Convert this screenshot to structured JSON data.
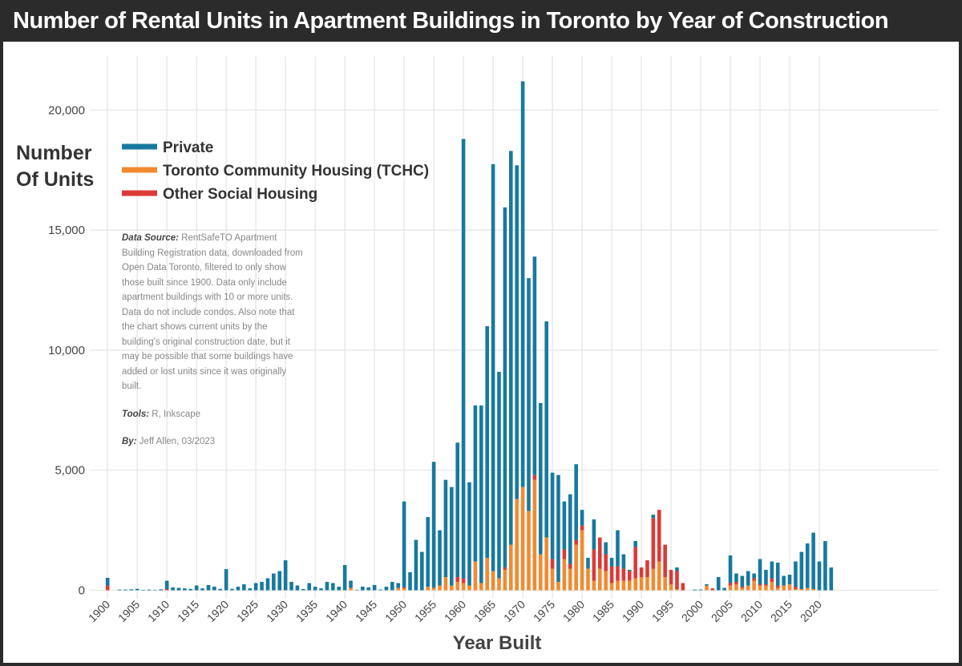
{
  "chart_data": {
    "type": "stacked_bar",
    "title": "Number of Rental Units in Apartment Buildings in Toronto by Year of Construction",
    "y_label": "Number Of Units",
    "x_label": "Year Built",
    "notes": {
      "source_label": "Data Source:",
      "source": "RentSafeTO Apartment Building Registration data, downloaded from Open Data Toronto, filtered to only show those built since 1900. Data only include apartment buildings with 10 or more units. Data do not include condos. Also note that the chart shows current units by the building's original construction date, but it may be possible that some buildings have added or lost units since it was originally built.",
      "tools_label": "Tools:",
      "tools": "R, Inkscape",
      "by_label": "By:",
      "by": "Jeff Allen, 03/2023"
    },
    "x": [
      1900,
      1901,
      1902,
      1903,
      1904,
      1905,
      1906,
      1907,
      1908,
      1909,
      1910,
      1911,
      1912,
      1913,
      1914,
      1915,
      1916,
      1917,
      1918,
      1919,
      1920,
      1921,
      1922,
      1923,
      1924,
      1925,
      1926,
      1927,
      1928,
      1929,
      1930,
      1931,
      1932,
      1933,
      1934,
      1935,
      1936,
      1937,
      1938,
      1939,
      1940,
      1941,
      1942,
      1943,
      1944,
      1945,
      1946,
      1947,
      1948,
      1949,
      1950,
      1951,
      1952,
      1953,
      1954,
      1955,
      1956,
      1957,
      1958,
      1959,
      1960,
      1961,
      1962,
      1963,
      1964,
      1965,
      1966,
      1967,
      1968,
      1969,
      1970,
      1971,
      1972,
      1973,
      1974,
      1975,
      1976,
      1977,
      1978,
      1979,
      1980,
      1981,
      1982,
      1983,
      1984,
      1985,
      1986,
      1987,
      1988,
      1989,
      1990,
      1991,
      1992,
      1993,
      1994,
      1995,
      1996,
      1997,
      1998,
      1999,
      2000,
      2001,
      2002,
      2003,
      2004,
      2005,
      2006,
      2007,
      2008,
      2009,
      2010,
      2011,
      2012,
      2013,
      2014,
      2015,
      2016,
      2017,
      2018,
      2019,
      2020,
      2021,
      2022
    ],
    "series": [
      {
        "name": "Private",
        "color": "#17799f",
        "values": [
          320,
          0,
          30,
          30,
          40,
          60,
          20,
          30,
          20,
          40,
          350,
          120,
          100,
          80,
          60,
          200,
          80,
          220,
          150,
          60,
          880,
          60,
          150,
          250,
          80,
          300,
          350,
          500,
          700,
          800,
          1250,
          350,
          200,
          50,
          300,
          150,
          80,
          350,
          300,
          150,
          1050,
          300,
          20,
          150,
          120,
          220,
          30,
          150,
          350,
          200,
          3570,
          750,
          2100,
          1600,
          2900,
          5250,
          2300,
          4050,
          4100,
          5600,
          18300,
          4300,
          6500,
          7400,
          9650,
          16950,
          8600,
          15000,
          16400,
          13900,
          16900,
          9700,
          9100,
          6300,
          9000,
          3600,
          4450,
          2000,
          2900,
          3150,
          650,
          450,
          1250,
          0,
          500,
          350,
          1500,
          600,
          50,
          250,
          0,
          0,
          150,
          0,
          0,
          0,
          150,
          0,
          0,
          30,
          30,
          50,
          0,
          550,
          100,
          1150,
          350,
          450,
          600,
          200,
          1050,
          600,
          700,
          950,
          400,
          400,
          1050,
          1550,
          1850,
          2350,
          1200,
          2050,
          950
        ]
      },
      {
        "name": "Toronto Community Housing (TCHC)",
        "color": "#f28a30",
        "values": [
          0,
          0,
          0,
          0,
          0,
          0,
          0,
          0,
          0,
          0,
          0,
          0,
          0,
          0,
          0,
          0,
          0,
          0,
          0,
          0,
          0,
          0,
          0,
          0,
          0,
          0,
          0,
          0,
          0,
          0,
          0,
          0,
          0,
          0,
          0,
          0,
          0,
          0,
          0,
          0,
          0,
          100,
          0,
          0,
          0,
          0,
          0,
          0,
          0,
          100,
          80,
          0,
          0,
          0,
          150,
          100,
          200,
          550,
          200,
          350,
          300,
          200,
          1200,
          300,
          1350,
          800,
          500,
          850,
          1900,
          3800,
          4300,
          3300,
          4600,
          1500,
          2200,
          900,
          350,
          1300,
          900,
          1900,
          2500,
          900,
          400,
          900,
          800,
          300,
          400,
          400,
          400,
          500,
          550,
          550,
          900,
          1200,
          550,
          250,
          50,
          0,
          0,
          0,
          0,
          200,
          0,
          0,
          0,
          200,
          250,
          100,
          200,
          400,
          200,
          200,
          350,
          100,
          200,
          250,
          50,
          50,
          100,
          50,
          0,
          0,
          0
        ]
      },
      {
        "name": "Other Social Housing",
        "color": "#dc3a36",
        "values": [
          200,
          0,
          0,
          0,
          0,
          0,
          0,
          0,
          0,
          0,
          50,
          0,
          0,
          0,
          0,
          0,
          0,
          0,
          0,
          0,
          0,
          0,
          0,
          0,
          0,
          0,
          0,
          0,
          0,
          0,
          0,
          0,
          0,
          0,
          0,
          0,
          0,
          0,
          0,
          0,
          0,
          0,
          0,
          0,
          0,
          0,
          0,
          0,
          0,
          0,
          50,
          0,
          0,
          0,
          0,
          0,
          0,
          0,
          0,
          200,
          200,
          0,
          0,
          0,
          0,
          0,
          0,
          100,
          0,
          0,
          0,
          0,
          200,
          0,
          0,
          400,
          0,
          400,
          200,
          200,
          200,
          0,
          1300,
          1300,
          700,
          700,
          600,
          500,
          400,
          1300,
          400,
          700,
          2100,
          2150,
          1350,
          600,
          750,
          300,
          0,
          0,
          0,
          0,
          80,
          0,
          0,
          100,
          100,
          50,
          0,
          100,
          50,
          50,
          150,
          100,
          0,
          0,
          100,
          0,
          0,
          0,
          0,
          0,
          0
        ]
      }
    ],
    "xlim": [
      1897,
      2040
    ],
    "xticks": [
      1900,
      1905,
      1910,
      1915,
      1920,
      1925,
      1930,
      1935,
      1940,
      1945,
      1950,
      1955,
      1960,
      1965,
      1970,
      1975,
      1980,
      1985,
      1990,
      1995,
      2000,
      2005,
      2010,
      2015,
      2020
    ],
    "ylim": [
      -350,
      22250
    ],
    "yticks": [
      0,
      {
        "value": 5000,
        "label": "5,000"
      },
      {
        "value": 10000,
        "label": "10,000"
      },
      {
        "value": 15000,
        "label": "15,000"
      },
      {
        "value": 20000,
        "label": "20,000"
      }
    ],
    "grid": true,
    "legend": "top-left"
  }
}
